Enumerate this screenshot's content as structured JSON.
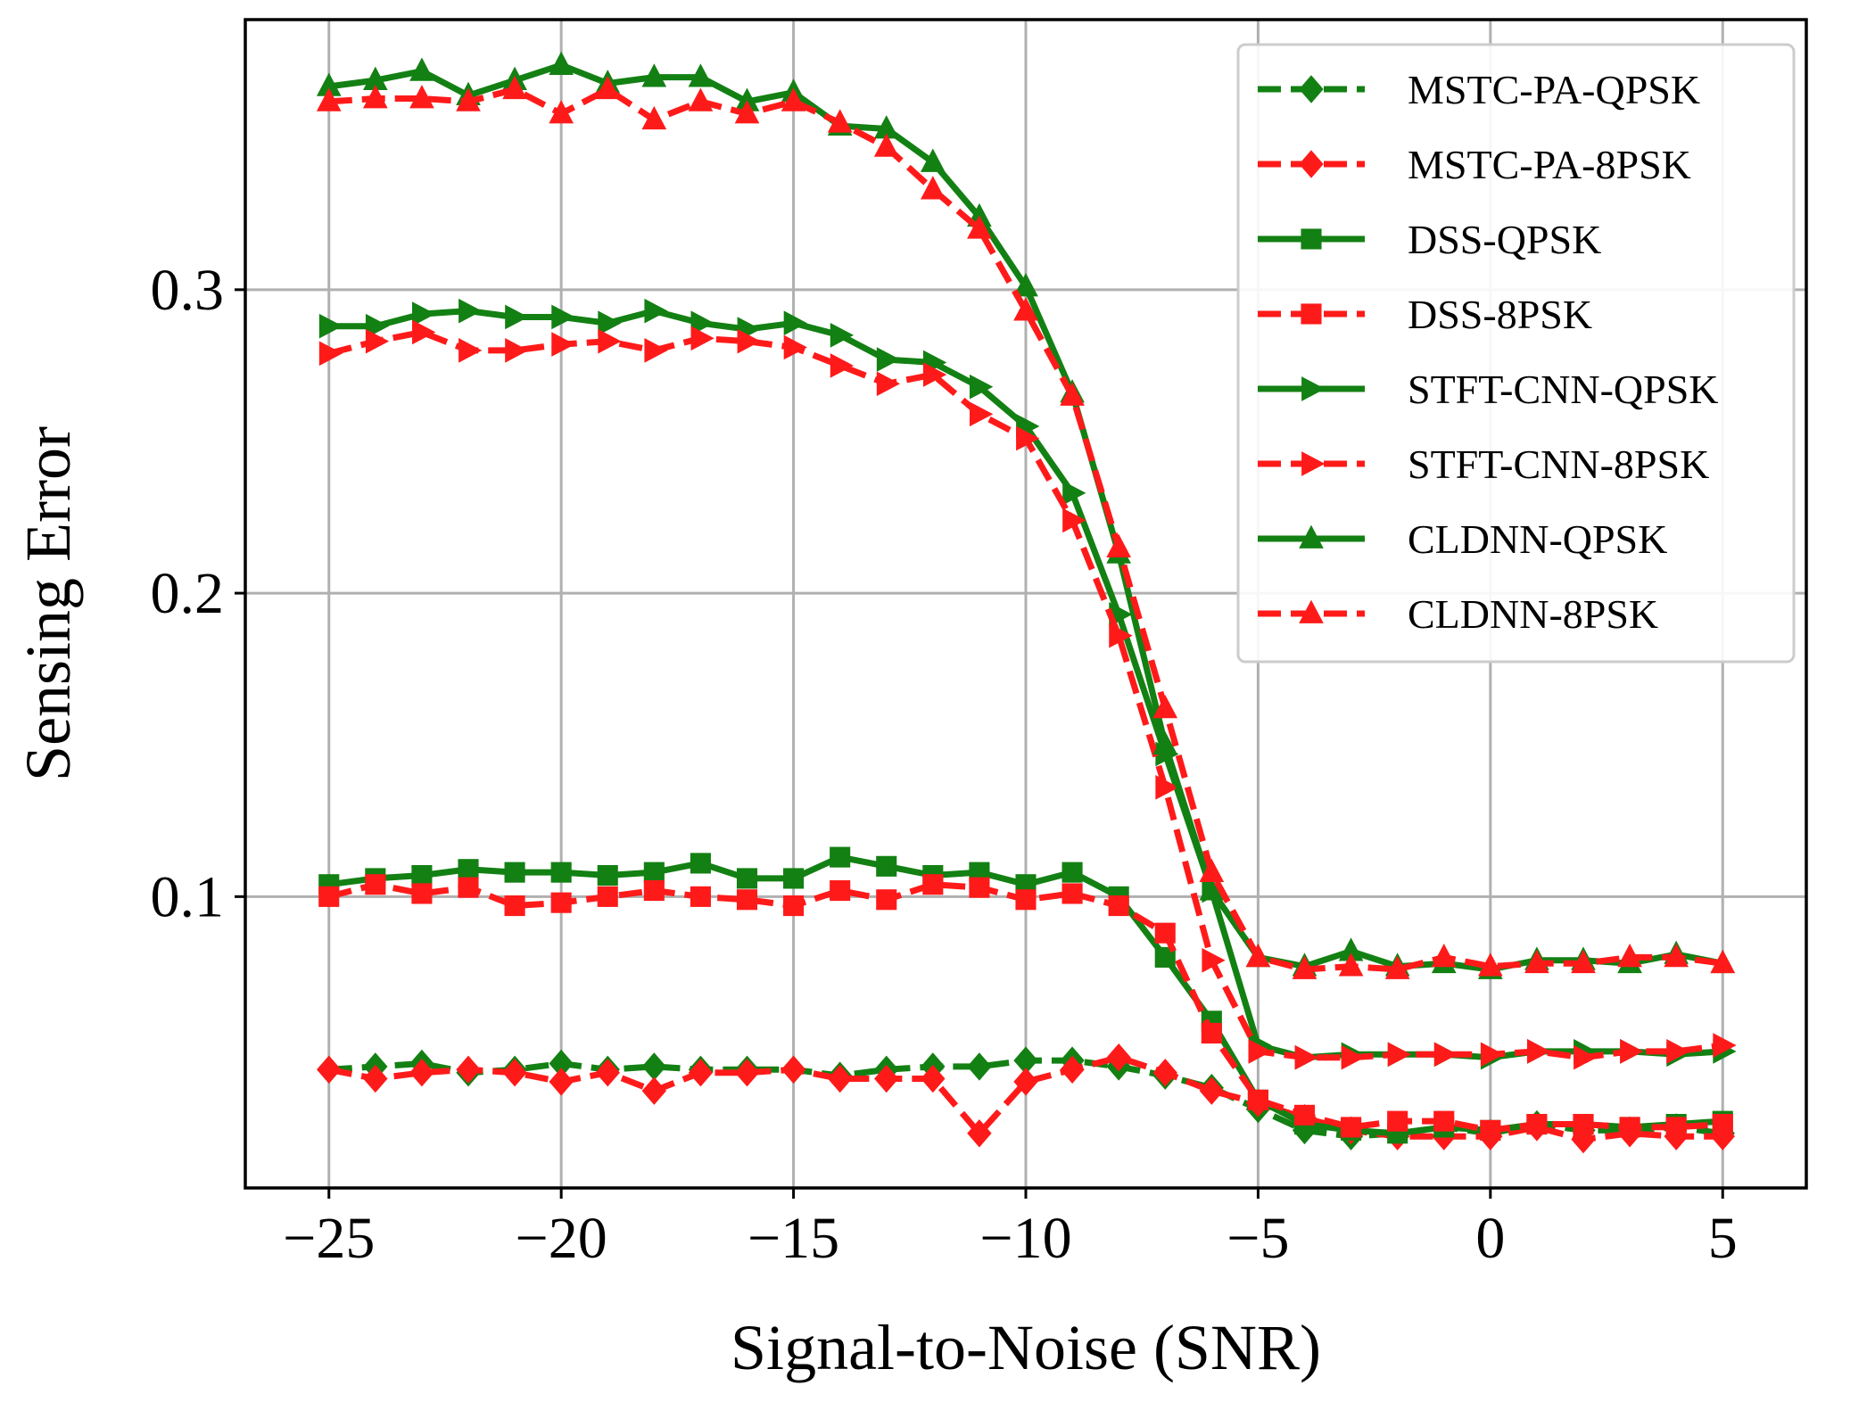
{
  "chart_data": {
    "type": "line",
    "title": "",
    "xlabel": "Signal-to-Noise (SNR)",
    "ylabel": "Sensing Error",
    "xlim": [
      -26.8,
      6.8
    ],
    "ylim": [
      0.004,
      0.389
    ],
    "xticks": [
      -25,
      -20,
      -15,
      -10,
      -5,
      0,
      5
    ],
    "xtick_labels": [
      "−25",
      "−20",
      "−15",
      "−10",
      "−5",
      "0",
      "5"
    ],
    "yticks": [
      0.1,
      0.2,
      0.3
    ],
    "ytick_labels": [
      "0.1",
      "0.2",
      "0.3"
    ],
    "grid": true,
    "legend_position": "top-right",
    "colors": {
      "green": "#138013",
      "red": "#ff1a1a"
    },
    "x": [
      -25,
      -24,
      -23,
      -22,
      -21,
      -20,
      -19,
      -18,
      -17,
      -16,
      -15,
      -14,
      -13,
      -12,
      -11,
      -10,
      -9,
      -8,
      -7,
      -6,
      -5,
      -4,
      -3,
      -2,
      -1,
      0,
      1,
      2,
      3,
      4,
      5
    ],
    "series": [
      {
        "name": "MSTC-PA-QPSK",
        "color": "#138013",
        "dash": "dashed",
        "marker": "diamond",
        "values": [
          0.043,
          0.044,
          0.045,
          0.042,
          0.043,
          0.045,
          0.043,
          0.044,
          0.043,
          0.043,
          0.043,
          0.041,
          0.043,
          0.044,
          0.044,
          0.046,
          0.046,
          0.044,
          0.041,
          0.037,
          0.03,
          0.023,
          0.021,
          0.022,
          0.024,
          0.022,
          0.025,
          0.023,
          0.023,
          0.024,
          0.022
        ]
      },
      {
        "name": "MSTC-PA-8PSK",
        "color": "#ff1a1a",
        "dash": "dashed",
        "marker": "diamond",
        "values": [
          0.043,
          0.04,
          0.042,
          0.043,
          0.042,
          0.039,
          0.042,
          0.036,
          0.042,
          0.042,
          0.043,
          0.04,
          0.04,
          0.04,
          0.022,
          0.039,
          0.043,
          0.047,
          0.042,
          0.036,
          0.032,
          0.027,
          0.023,
          0.021,
          0.021,
          0.021,
          0.024,
          0.02,
          0.022,
          0.021,
          0.021
        ]
      },
      {
        "name": "DSS-QPSK",
        "color": "#138013",
        "dash": "solid",
        "marker": "square",
        "values": [
          0.104,
          0.106,
          0.107,
          0.109,
          0.108,
          0.108,
          0.107,
          0.108,
          0.111,
          0.106,
          0.106,
          0.113,
          0.11,
          0.107,
          0.108,
          0.104,
          0.108,
          0.1,
          0.08,
          0.059,
          0.033,
          0.025,
          0.023,
          0.022,
          0.024,
          0.023,
          0.025,
          0.025,
          0.024,
          0.025,
          0.026
        ]
      },
      {
        "name": "DSS-8PSK",
        "color": "#ff1a1a",
        "dash": "dashed",
        "marker": "square",
        "values": [
          0.1,
          0.104,
          0.101,
          0.103,
          0.097,
          0.098,
          0.1,
          0.102,
          0.1,
          0.099,
          0.097,
          0.102,
          0.099,
          0.104,
          0.103,
          0.099,
          0.101,
          0.097,
          0.088,
          0.055,
          0.033,
          0.028,
          0.024,
          0.026,
          0.026,
          0.023,
          0.025,
          0.025,
          0.024,
          0.024,
          0.025
        ]
      },
      {
        "name": "STFT-CNN-QPSK",
        "color": "#138013",
        "dash": "solid",
        "marker": "triangle-right",
        "values": [
          0.288,
          0.288,
          0.292,
          0.293,
          0.291,
          0.291,
          0.289,
          0.293,
          0.289,
          0.287,
          0.289,
          0.285,
          0.277,
          0.276,
          0.268,
          0.255,
          0.233,
          0.193,
          0.147,
          0.102,
          0.051,
          0.047,
          0.048,
          0.048,
          0.048,
          0.047,
          0.049,
          0.049,
          0.049,
          0.048,
          0.049
        ]
      },
      {
        "name": "STFT-CNN-8PSK",
        "color": "#ff1a1a",
        "dash": "dashed",
        "marker": "triangle-right",
        "values": [
          0.279,
          0.283,
          0.286,
          0.28,
          0.28,
          0.282,
          0.283,
          0.28,
          0.284,
          0.283,
          0.281,
          0.275,
          0.269,
          0.272,
          0.259,
          0.251,
          0.224,
          0.186,
          0.136,
          0.079,
          0.049,
          0.047,
          0.047,
          0.048,
          0.048,
          0.048,
          0.049,
          0.047,
          0.049,
          0.049,
          0.051
        ]
      },
      {
        "name": "CLDNN-QPSK",
        "color": "#138013",
        "dash": "solid",
        "marker": "triangle-up",
        "values": [
          0.367,
          0.369,
          0.372,
          0.364,
          0.369,
          0.374,
          0.368,
          0.37,
          0.37,
          0.362,
          0.365,
          0.354,
          0.353,
          0.342,
          0.324,
          0.301,
          0.266,
          0.213,
          0.15,
          0.102,
          0.08,
          0.077,
          0.082,
          0.077,
          0.078,
          0.076,
          0.079,
          0.079,
          0.078,
          0.081,
          0.078
        ]
      },
      {
        "name": "CLDNN-8PSK",
        "color": "#ff1a1a",
        "dash": "dashed",
        "marker": "triangle-up",
        "values": [
          0.362,
          0.363,
          0.363,
          0.362,
          0.366,
          0.358,
          0.366,
          0.356,
          0.362,
          0.358,
          0.362,
          0.355,
          0.347,
          0.333,
          0.32,
          0.293,
          0.265,
          0.215,
          0.162,
          0.108,
          0.08,
          0.076,
          0.077,
          0.076,
          0.08,
          0.077,
          0.078,
          0.078,
          0.08,
          0.08,
          0.078
        ]
      }
    ]
  }
}
